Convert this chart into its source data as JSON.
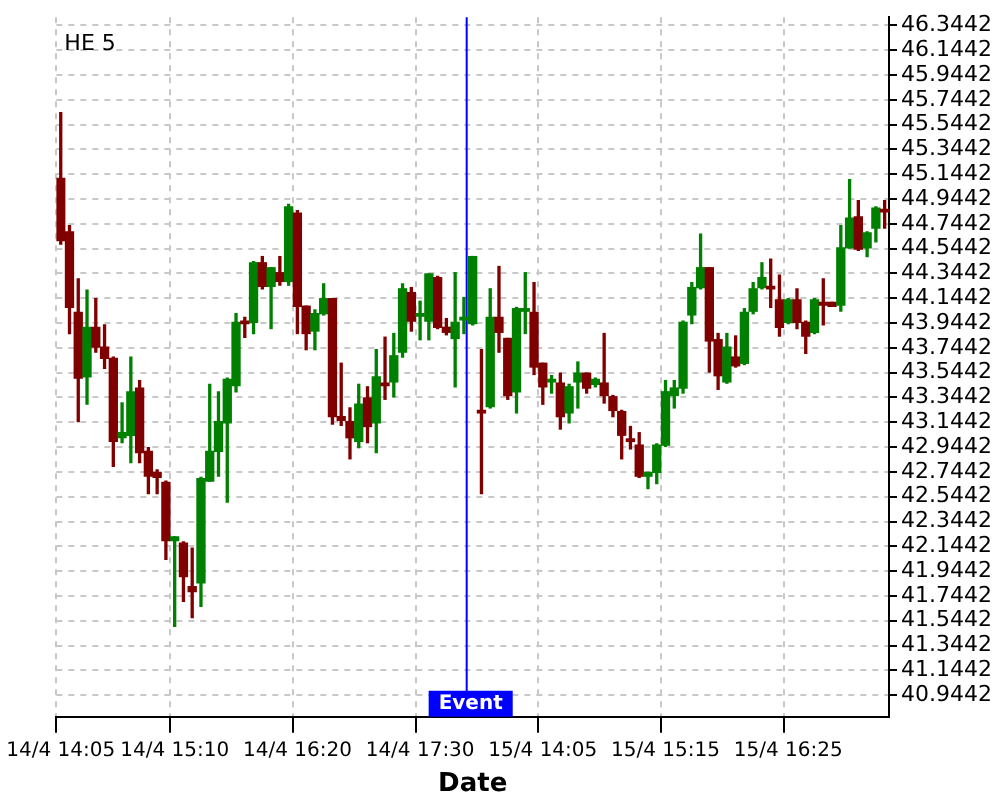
{
  "chart_data": {
    "type": "candlestick",
    "title": "HE 5",
    "xlabel": "Date",
    "categories": [
      "14/4 14:05",
      null,
      null,
      null,
      null,
      null,
      null,
      null,
      null,
      null,
      null,
      null,
      null,
      "14/4 15:10",
      null,
      null,
      null,
      null,
      null,
      null,
      null,
      null,
      null,
      null,
      null,
      null,
      null,
      "14/4 16:20",
      null,
      null,
      null,
      null,
      null,
      null,
      null,
      null,
      null,
      null,
      null,
      null,
      null,
      "14/4 17:30",
      null,
      null,
      null,
      null,
      null,
      null,
      null,
      null,
      null,
      null,
      null,
      null,
      null,
      "15/4 14:05",
      null,
      null,
      null,
      null,
      null,
      null,
      null,
      null,
      null,
      null,
      null,
      null,
      null,
      "15/4 15:15",
      null,
      null,
      null,
      null,
      null,
      null,
      null,
      null,
      null,
      null,
      null,
      null,
      null,
      "15/4 16:25",
      null,
      null,
      null,
      null,
      null,
      null,
      null,
      null,
      null,
      null,
      null
    ],
    "ohlc": [
      [
        45.11,
        45.64,
        44.58,
        44.61
      ],
      [
        44.68,
        44.73,
        43.86,
        44.07
      ],
      [
        44.03,
        44.3,
        43.15,
        43.5
      ],
      [
        43.51,
        44.21,
        43.29,
        43.91
      ],
      [
        43.91,
        44.14,
        43.71,
        43.75
      ],
      [
        43.75,
        43.93,
        43.58,
        43.66
      ],
      [
        43.66,
        43.67,
        42.79,
        42.99
      ],
      [
        43.02,
        43.3,
        42.98,
        43.06
      ],
      [
        43.04,
        43.67,
        42.82,
        43.39
      ],
      [
        43.42,
        43.48,
        42.82,
        42.9
      ],
      [
        42.91,
        42.94,
        42.57,
        42.71
      ],
      [
        42.74,
        42.76,
        42.57,
        42.7
      ],
      [
        42.66,
        42.67,
        42.04,
        42.19
      ],
      [
        42.19,
        42.22,
        41.5,
        42.22
      ],
      [
        42.17,
        42.18,
        41.7,
        41.9
      ],
      [
        41.82,
        42.13,
        41.57,
        41.78
      ],
      [
        41.85,
        42.7,
        41.66,
        42.69
      ],
      [
        42.67,
        43.45,
        42.67,
        42.91
      ],
      [
        42.91,
        43.39,
        42.71,
        43.15
      ],
      [
        43.14,
        43.5,
        42.5,
        43.49
      ],
      [
        43.44,
        44.02,
        43.39,
        43.95
      ],
      [
        43.96,
        43.99,
        43.83,
        43.94
      ],
      [
        43.95,
        44.44,
        43.86,
        44.43
      ],
      [
        44.43,
        44.48,
        44.22,
        44.24
      ],
      [
        44.24,
        44.39,
        43.9,
        44.39
      ],
      [
        44.35,
        44.48,
        44.25,
        44.28
      ],
      [
        44.28,
        44.9,
        44.25,
        44.88
      ],
      [
        44.83,
        44.85,
        43.86,
        44.08
      ],
      [
        44.08,
        44.08,
        43.73,
        43.86
      ],
      [
        43.88,
        44.05,
        43.73,
        44.02
      ],
      [
        44.02,
        44.26,
        44.01,
        44.14
      ],
      [
        44.14,
        44.14,
        43.13,
        43.19
      ],
      [
        43.19,
        43.62,
        43.12,
        43.16
      ],
      [
        43.15,
        43.26,
        42.85,
        43.02
      ],
      [
        42.99,
        43.45,
        42.94,
        43.29
      ],
      [
        43.34,
        43.43,
        42.98,
        43.11
      ],
      [
        43.14,
        43.73,
        42.9,
        43.51
      ],
      [
        43.46,
        43.83,
        43.33,
        43.44
      ],
      [
        43.47,
        43.86,
        43.35,
        43.68
      ],
      [
        43.71,
        44.26,
        43.67,
        44.22
      ],
      [
        44.19,
        44.23,
        43.88,
        43.96
      ],
      [
        44.0,
        44.12,
        43.81,
        44.02
      ],
      [
        43.96,
        44.34,
        43.81,
        44.34
      ],
      [
        44.31,
        44.32,
        43.9,
        43.91
      ],
      [
        43.91,
        43.98,
        43.85,
        43.87
      ],
      [
        43.82,
        44.35,
        43.43,
        43.95
      ],
      [
        43.97,
        44.15,
        43.86,
        43.99
      ],
      [
        43.94,
        44.48,
        43.93,
        44.48
      ],
      [
        43.24,
        43.73,
        42.57,
        43.22
      ],
      [
        43.27,
        44.22,
        43.26,
        43.99
      ],
      [
        43.99,
        44.4,
        43.71,
        43.87
      ],
      [
        43.82,
        43.82,
        43.33,
        43.36
      ],
      [
        43.39,
        44.07,
        43.22,
        44.06
      ],
      [
        44.04,
        44.35,
        43.86,
        44.06
      ],
      [
        44.03,
        44.27,
        43.53,
        43.59
      ],
      [
        43.62,
        43.62,
        43.29,
        43.43
      ],
      [
        43.47,
        43.52,
        43.38,
        43.49
      ],
      [
        43.46,
        43.54,
        43.09,
        43.19
      ],
      [
        43.22,
        43.45,
        43.14,
        43.43
      ],
      [
        43.47,
        43.63,
        43.26,
        43.54
      ],
      [
        43.54,
        43.54,
        43.38,
        43.42
      ],
      [
        43.45,
        43.5,
        43.43,
        43.49
      ],
      [
        43.46,
        43.86,
        43.3,
        43.36
      ],
      [
        43.35,
        43.36,
        43.19,
        43.24
      ],
      [
        43.23,
        43.24,
        42.85,
        43.04
      ],
      [
        43.01,
        43.11,
        42.93,
        42.99
      ],
      [
        42.96,
        43.06,
        42.7,
        42.71
      ],
      [
        42.71,
        42.74,
        42.61,
        42.74
      ],
      [
        42.74,
        42.97,
        42.65,
        42.96
      ],
      [
        42.96,
        43.48,
        42.95,
        43.39
      ],
      [
        43.36,
        43.48,
        43.26,
        43.42
      ],
      [
        43.42,
        43.96,
        43.38,
        43.95
      ],
      [
        44.01,
        44.27,
        43.94,
        44.23
      ],
      [
        44.23,
        44.66,
        44.22,
        44.39
      ],
      [
        44.39,
        44.39,
        43.55,
        43.8
      ],
      [
        43.81,
        43.86,
        43.41,
        43.52
      ],
      [
        43.47,
        43.86,
        43.46,
        43.75
      ],
      [
        43.67,
        43.84,
        43.59,
        43.6
      ],
      [
        43.62,
        44.06,
        43.61,
        44.03
      ],
      [
        44.04,
        44.27,
        44.02,
        44.22
      ],
      [
        44.23,
        44.43,
        44.22,
        44.31
      ],
      [
        44.24,
        44.46,
        44.07,
        44.22
      ],
      [
        44.13,
        44.33,
        43.84,
        43.91
      ],
      [
        43.95,
        44.14,
        43.94,
        44.13
      ],
      [
        44.13,
        44.22,
        43.9,
        43.95
      ],
      [
        43.95,
        43.96,
        43.7,
        43.84
      ],
      [
        43.87,
        44.14,
        43.86,
        44.13
      ],
      [
        44.11,
        44.3,
        43.93,
        44.09
      ],
      [
        44.11,
        44.11,
        44.08,
        44.08
      ],
      [
        44.09,
        44.73,
        44.04,
        44.55
      ],
      [
        44.55,
        45.1,
        44.55,
        44.79
      ],
      [
        44.8,
        44.93,
        44.53,
        44.54
      ],
      [
        44.55,
        44.68,
        44.48,
        44.67
      ],
      [
        44.71,
        44.88,
        44.6,
        44.87
      ],
      [
        44.86,
        44.93,
        44.71,
        44.84
      ]
    ],
    "colors": [
      "#800000",
      "#800000",
      "#800000",
      "#008000",
      "#800000",
      "#800000",
      "#800000",
      "#008000",
      "#008000",
      "#800000",
      "#800000",
      "#800000",
      "#800000",
      "#008000",
      "#800000",
      "#800000",
      "#008000",
      "#008000",
      "#008000",
      "#008000",
      "#008000",
      "#800000",
      "#008000",
      "#800000",
      "#008000",
      "#800000",
      "#008000",
      "#800000",
      "#800000",
      "#008000",
      "#008000",
      "#800000",
      "#800000",
      "#800000",
      "#008000",
      "#800000",
      "#008000",
      "#800000",
      "#008000",
      "#008000",
      "#800000",
      "#008000",
      "#008000",
      "#800000",
      "#800000",
      "#008000",
      "#008000",
      "#008000",
      "#800000",
      "#008000",
      "#800000",
      "#800000",
      "#008000",
      "#008000",
      "#800000",
      "#800000",
      "#008000",
      "#800000",
      "#008000",
      "#008000",
      "#800000",
      "#008000",
      "#800000",
      "#800000",
      "#800000",
      "#800000",
      "#800000",
      "#008000",
      "#008000",
      "#008000",
      "#008000",
      "#008000",
      "#008000",
      "#008000",
      "#800000",
      "#800000",
      "#008000",
      "#800000",
      "#008000",
      "#008000",
      "#008000",
      "#800000",
      "#800000",
      "#008000",
      "#800000",
      "#800000",
      "#008000",
      "#800000",
      "#800000",
      "#008000",
      "#008000",
      "#800000",
      "#008000",
      "#008000",
      "#800000"
    ],
    "ylim": [
      40.77,
      46.41
    ],
    "yticks": [
      40.9442,
      41.1442,
      41.3442,
      41.5442,
      41.7442,
      41.9442,
      42.1442,
      42.3442,
      42.5442,
      42.7442,
      42.9442,
      43.1442,
      43.3442,
      43.5442,
      43.7442,
      43.9442,
      44.1442,
      44.3442,
      44.5442,
      44.7442,
      44.9442,
      45.1442,
      45.3442,
      45.5442,
      45.7442,
      45.9442,
      46.1442,
      46.3442
    ],
    "annotations": [
      "Event"
    ],
    "grid": true
  }
}
